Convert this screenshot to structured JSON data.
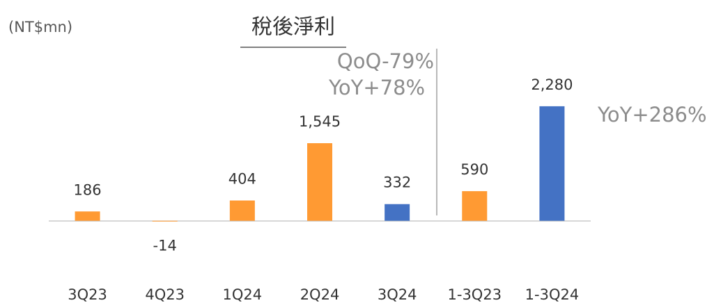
{
  "chart_data": {
    "type": "bar",
    "title": "稅後淨利",
    "unit_label": "(NT$mn)",
    "categories": [
      "3Q23",
      "4Q23",
      "1Q24",
      "2Q24",
      "3Q24",
      "1-3Q23",
      "1-3Q24"
    ],
    "values": [
      186,
      -14,
      404,
      1545,
      332,
      590,
      2280
    ],
    "value_labels": [
      "186",
      "-14",
      "404",
      "1,545",
      "332",
      "590",
      "2,280"
    ],
    "colors": [
      "#ff9a33",
      "#ff9a33",
      "#ff9a33",
      "#ff9a33",
      "#4472c4",
      "#ff9a33",
      "#4472c4"
    ],
    "ylim": [
      -1000,
      2500
    ],
    "annotations": [
      "QoQ-79%",
      "YoY+78%",
      "YoY+286%"
    ]
  }
}
